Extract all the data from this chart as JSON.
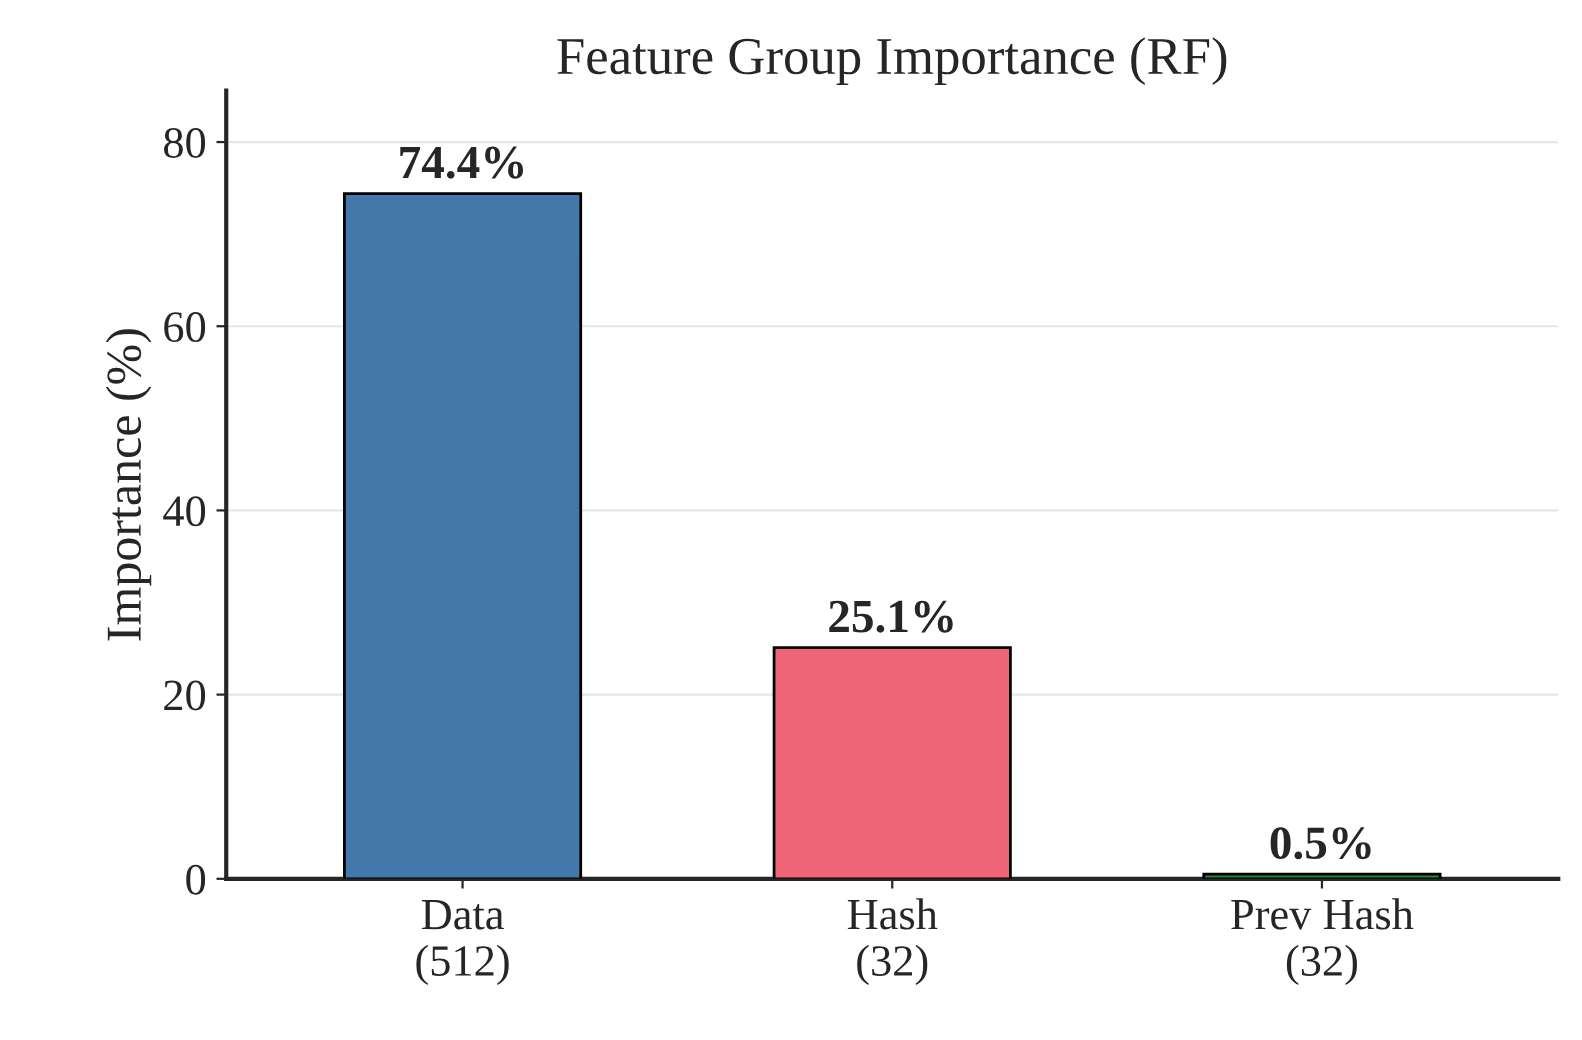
{
  "chart_data": {
    "type": "bar",
    "title": "Feature Group Importance (RF)",
    "ylabel": "Importance (%)",
    "categories": [
      "Data\n(512)",
      "Hash\n(32)",
      "Prev Hash\n(32)"
    ],
    "values": [
      74.4,
      25.1,
      0.5
    ],
    "colors": [
      "#4477aa",
      "#ee6677",
      "#228833"
    ],
    "value_labels": [
      "74.4%",
      "25.1%",
      "0.5%"
    ],
    "ylim": [
      0,
      85.6
    ],
    "yticks": [
      0,
      20,
      40,
      60,
      80
    ],
    "grid": "y",
    "legend": false
  }
}
